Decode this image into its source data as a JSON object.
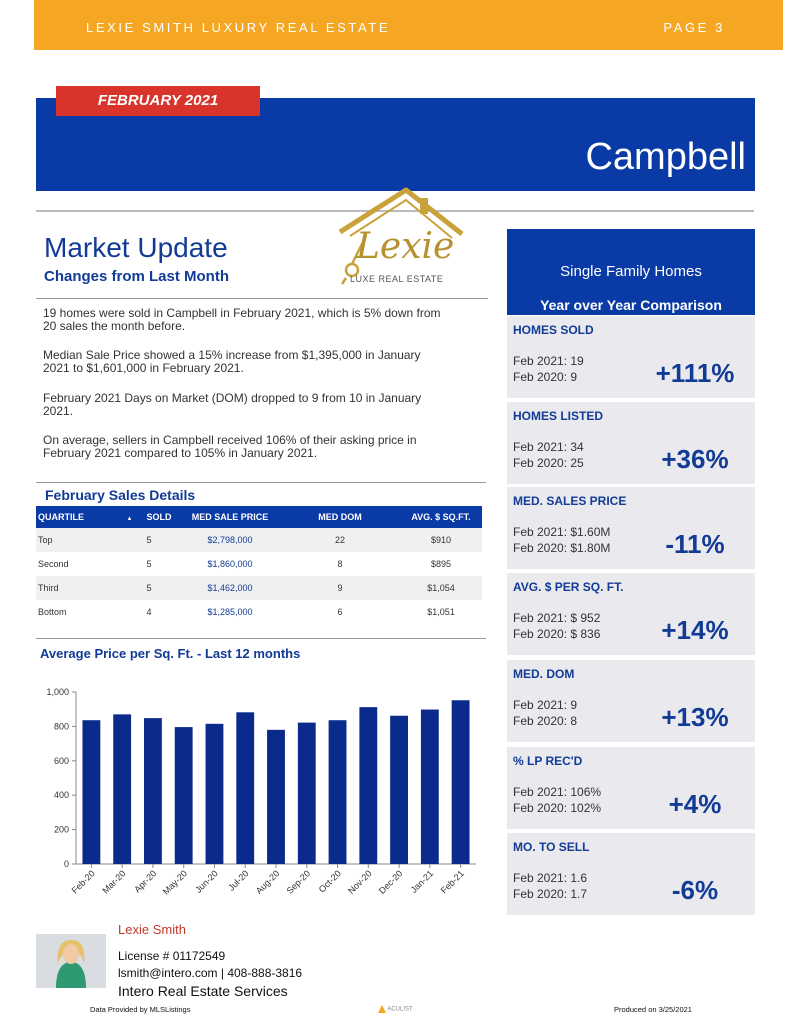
{
  "header": {
    "brand": "LEXIE SMITH LUXURY REAL ESTATE",
    "page": "PAGE 3"
  },
  "banner": {
    "month": "FEBRUARY 2021",
    "city": "Campbell"
  },
  "logo": {
    "word": "Lexie",
    "tagline": "LUXE REAL ESTATE"
  },
  "market_update": {
    "title": "Market Update",
    "subtitle": "Changes from Last Month",
    "paragraphs": [
      [
        "19 homes were sold in Campbell in February 2021, which is 5% down from",
        "20 sales the month before."
      ],
      [
        "Median Sale Price showed a 15% increase  from $1,395,000 in January",
        "2021 to $1,601,000 in February 2021."
      ],
      [
        "February 2021 Days on Market (DOM)  dropped to 9 from 10 in January",
        "2021."
      ],
      [
        "On average, sellers in Campbell received 106% of their asking price in",
        "February 2021 compared to 105% in January 2021."
      ]
    ]
  },
  "sales_details": {
    "title": "February Sales Details",
    "headers": [
      "QUARTILE",
      "SOLD",
      "MED SALE PRICE",
      "MED DOM",
      "AVG. $ SQ.FT."
    ],
    "sort_indicator": "▲",
    "rows": [
      [
        "Top",
        "5",
        "$2,798,000",
        "22",
        "$910"
      ],
      [
        "Second",
        "5",
        "$1,860,000",
        "8",
        "$895"
      ],
      [
        "Third",
        "5",
        "$1,462,000",
        "9",
        "$1,054"
      ],
      [
        "Bottom",
        "4",
        "$1,285,000",
        "6",
        "$1,051"
      ]
    ]
  },
  "chart_data": {
    "type": "bar",
    "title": "Average Price per Sq. Ft. - Last 12 months",
    "categories": [
      "Feb-20",
      "Mar-20",
      "Apr-20",
      "May-20",
      "Jun-20",
      "Jul-20",
      "Aug-20",
      "Sep-20",
      "Oct-20",
      "Nov-20",
      "Dec-20",
      "Jan-21",
      "Feb-21"
    ],
    "values": [
      836,
      870,
      848,
      796,
      815,
      882,
      780,
      822,
      836,
      912,
      862,
      898,
      952
    ],
    "ylim": [
      0,
      1000
    ],
    "yticks": [
      0,
      200,
      400,
      600,
      800,
      1000
    ],
    "ytick_labels": [
      "0",
      "200",
      "400",
      "600",
      "800",
      "1,000"
    ],
    "xlabel": "",
    "ylabel": "",
    "grid": false,
    "bar_color": "#0a2b8c"
  },
  "comparison": {
    "title": "Single Family Homes",
    "subtitle": "Year over Year Comparison",
    "stats": [
      {
        "label": "HOMES SOLD",
        "line1": "Feb 2021:  19",
        "line2": "Feb 2020:  9",
        "change": "+111%"
      },
      {
        "label": "HOMES LISTED",
        "line1": "Feb 2021:  34",
        "line2": "Feb 2020:  25",
        "change": "+36%"
      },
      {
        "label": "MED. SALES PRICE",
        "line1": "Feb 2021:   $1.60M",
        "line2": "Feb 2020:   $1.80M",
        "change": "-11%"
      },
      {
        "label": "AVG. $ PER SQ. FT.",
        "line1": "Feb 2021:  $ 952",
        "line2": "Feb 2020:  $ 836",
        "change": "+14%"
      },
      {
        "label": "MED. DOM",
        "line1": "Feb 2021:   9",
        "line2": "Feb 2020:   8",
        "change": "+13%"
      },
      {
        "label": "% LP REC'D",
        "line1": "Feb 2021:    106%",
        "line2": "Feb 2020:    102%",
        "change": "+4%"
      },
      {
        "label": "MO. TO SELL",
        "line1": "Feb 2021:   1.6",
        "line2": "Feb 2020:   1.7",
        "change": "-6%"
      }
    ]
  },
  "agent": {
    "name": "Lexie Smith",
    "license": "License # 01172549",
    "contact": "lsmith@intero.com  |  408-888-3816",
    "company": "Intero Real Estate Services"
  },
  "footer": {
    "left": "Data Provided by MLSListings",
    "mid": "ACULIST",
    "right": "Produced on 3/25/2021"
  },
  "colors": {
    "brand_orange": "#f5a623",
    "brand_blue": "#0a3aa6",
    "accent_red": "#d9342b"
  }
}
